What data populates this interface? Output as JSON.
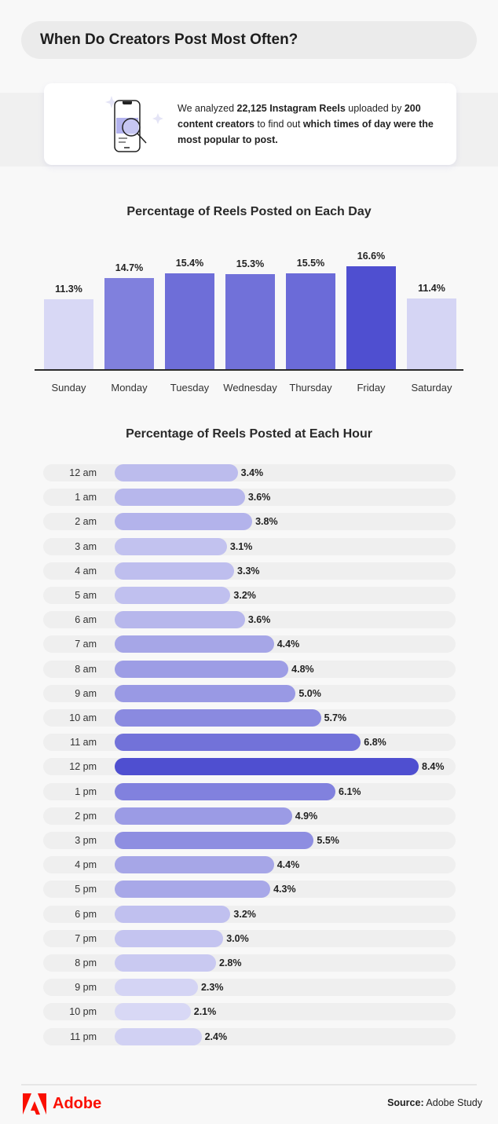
{
  "header": {
    "title": "When Do Creators Post Most Often?"
  },
  "intro": {
    "icon": "phone-magnifier-icon",
    "parts": [
      {
        "t": "We analyzed ",
        "b": false
      },
      {
        "t": "22,125 Instagram Reels",
        "b": true
      },
      {
        "t": " uploaded by ",
        "b": false
      },
      {
        "t": "200 content creators",
        "b": true
      },
      {
        "t": " to find out ",
        "b": false
      },
      {
        "t": "which times of day were the most popular to post.",
        "b": true
      }
    ]
  },
  "colors": {
    "light": "#d8d8f5",
    "dark": "#4f4fd0",
    "brand": "#fa0f00"
  },
  "chart_data": [
    {
      "type": "bar",
      "title": "Percentage of Reels Posted on Each Day",
      "categories": [
        "Sunday",
        "Monday",
        "Tuesday",
        "Wednesday",
        "Thursday",
        "Friday",
        "Saturday"
      ],
      "values": [
        11.3,
        14.7,
        15.4,
        15.3,
        15.5,
        16.6,
        11.4
      ],
      "labels": [
        "11.3%",
        "14.7%",
        "15.4%",
        "15.3%",
        "15.5%",
        "16.6%",
        "11.4%"
      ],
      "unit": "%",
      "grid": false
    },
    {
      "type": "bar",
      "orientation": "horizontal",
      "title": "Percentage of Reels Posted at Each Hour",
      "categories": [
        "12 am",
        "1 am",
        "2 am",
        "3 am",
        "4 am",
        "5 am",
        "6 am",
        "7 am",
        "8 am",
        "9 am",
        "10 am",
        "11 am",
        "12 pm",
        "1 pm",
        "2 pm",
        "3 pm",
        "4 pm",
        "5 pm",
        "6 pm",
        "7 pm",
        "8 pm",
        "9 pm",
        "10 pm",
        "11 pm"
      ],
      "values": [
        3.4,
        3.6,
        3.8,
        3.1,
        3.3,
        3.2,
        3.6,
        4.4,
        4.8,
        5.0,
        5.7,
        6.8,
        8.4,
        6.1,
        4.9,
        5.5,
        4.4,
        4.3,
        3.2,
        3.0,
        2.8,
        2.3,
        2.1,
        2.4
      ],
      "labels": [
        "3.4%",
        "3.6%",
        "3.8%",
        "3.1%",
        "3.3%",
        "3.2%",
        "3.6%",
        "4.4%",
        "4.8%",
        "5.0%",
        "5.7%",
        "6.8%",
        "8.4%",
        "6.1%",
        "4.9%",
        "5.5%",
        "4.4%",
        "4.3%",
        "3.2%",
        "3.0%",
        "2.8%",
        "2.3%",
        "2.1%",
        "2.4%"
      ],
      "unit": "%",
      "grid": false
    }
  ],
  "footer": {
    "brand": "Adobe",
    "source_label": "Source:",
    "source_value": "Adobe Study"
  }
}
